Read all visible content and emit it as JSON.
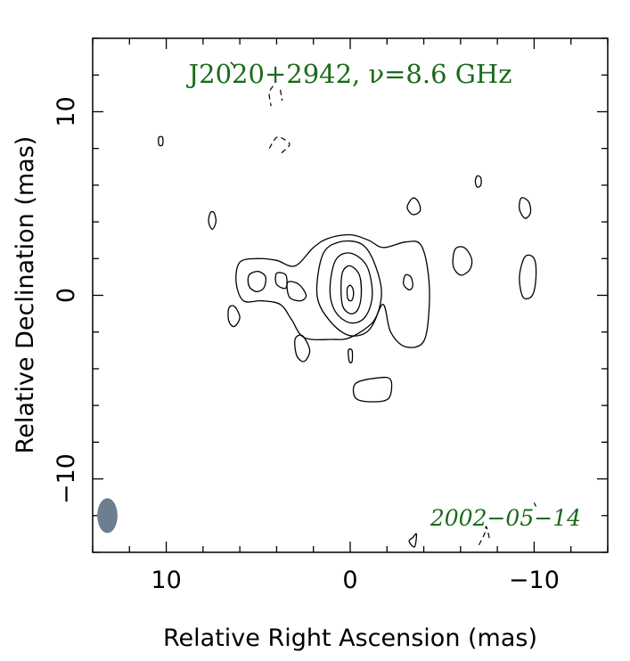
{
  "chart_data": {
    "type": "contour",
    "title": "J2020+2942, ν=8.6 GHz",
    "date": "2002−05−14",
    "xlabel": "Relative Right Ascension (mas)",
    "ylabel": "Relative Declination (mas)",
    "xlim": [
      14,
      -14
    ],
    "ylim": [
      -14,
      14
    ],
    "x_ticks": [
      10,
      0,
      -10
    ],
    "x_tick_labels": [
      "10",
      "0",
      "−10"
    ],
    "y_ticks": [
      10,
      0,
      -10
    ],
    "y_tick_labels": [
      "10",
      "0",
      "−10"
    ],
    "beam": {
      "x": 13.2,
      "y": -12.0,
      "major_mas": 1.9,
      "minor_mas": 1.1,
      "position_angle_deg": 0,
      "color": "#6e7e90"
    },
    "contours": {
      "positive": [
        {
          "level": 1,
          "points": [
            [
              6.0,
              1.8
            ],
            [
              5.0,
              2.0
            ],
            [
              4.0,
              1.9
            ],
            [
              3.0,
              1.6
            ],
            [
              2.0,
              2.6
            ],
            [
              1.2,
              3.1
            ],
            [
              0.0,
              3.3
            ],
            [
              -1.0,
              3.0
            ],
            [
              -1.8,
              2.6
            ],
            [
              -3.0,
              2.9
            ],
            [
              -3.8,
              2.8
            ],
            [
              -4.2,
              1.5
            ],
            [
              -4.3,
              -0.5
            ],
            [
              -4.0,
              -2.5
            ],
            [
              -3.0,
              -2.8
            ],
            [
              -2.2,
              -2.0
            ],
            [
              -1.8,
              -0.5
            ],
            [
              -1.2,
              -1.5
            ],
            [
              0.0,
              -2.3
            ],
            [
              1.0,
              -2.4
            ],
            [
              2.5,
              -2.3
            ],
            [
              3.2,
              -1.3
            ],
            [
              3.8,
              -0.5
            ],
            [
              4.8,
              -0.3
            ],
            [
              5.8,
              -0.3
            ],
            [
              6.2,
              0.7
            ]
          ]
        },
        {
          "level": 2,
          "points": [
            [
              1.5,
              2.2
            ],
            [
              0.6,
              2.9
            ],
            [
              -0.6,
              2.8
            ],
            [
              -1.3,
              1.8
            ],
            [
              -1.7,
              0.0
            ],
            [
              -1.1,
              -1.8
            ],
            [
              0.0,
              -2.2
            ],
            [
              1.1,
              -1.4
            ],
            [
              1.8,
              0.0
            ]
          ]
        },
        {
          "level": 3,
          "points": [
            [
              0.8,
              1.9
            ],
            [
              0.0,
              2.3
            ],
            [
              -0.9,
              1.6
            ],
            [
              -1.2,
              0.0
            ],
            [
              -0.8,
              -1.2
            ],
            [
              0.0,
              -1.5
            ],
            [
              0.8,
              -0.9
            ],
            [
              1.1,
              0.3
            ]
          ]
        },
        {
          "level": 4,
          "points": [
            [
              0.4,
              1.3
            ],
            [
              0.0,
              1.6
            ],
            [
              -0.5,
              1.1
            ],
            [
              -0.6,
              0.0
            ],
            [
              -0.4,
              -0.8
            ],
            [
              0.0,
              -1.0
            ],
            [
              0.4,
              -0.6
            ],
            [
              0.5,
              0.4
            ]
          ]
        },
        {
          "level": 5,
          "points": [
            [
              0.15,
              0.4
            ],
            [
              0.0,
              0.55
            ],
            [
              -0.15,
              0.35
            ],
            [
              -0.18,
              0.0
            ],
            [
              -0.1,
              -0.25
            ],
            [
              0.0,
              -0.3
            ],
            [
              0.12,
              -0.2
            ],
            [
              0.17,
              0.1
            ]
          ]
        },
        {
          "level": 1,
          "points": [
            [
              5.5,
              1.1
            ],
            [
              5.0,
              1.3
            ],
            [
              4.6,
              1.0
            ],
            [
              4.7,
              0.4
            ],
            [
              5.1,
              0.2
            ],
            [
              5.5,
              0.5
            ]
          ]
        },
        {
          "level": 1,
          "points": [
            [
              4.0,
              1.2
            ],
            [
              3.5,
              1.1
            ],
            [
              3.5,
              0.4
            ],
            [
              4.0,
              0.6
            ]
          ]
        },
        {
          "level": 1,
          "points": [
            [
              3.4,
              0.7
            ],
            [
              2.8,
              0.6
            ],
            [
              2.4,
              0.0
            ],
            [
              2.7,
              -0.3
            ],
            [
              3.3,
              -0.1
            ]
          ]
        },
        {
          "level": 1,
          "points": [
            [
              -3.0,
              1.1
            ],
            [
              -3.3,
              1.0
            ],
            [
              -3.4,
              0.5
            ],
            [
              -3.2,
              0.3
            ],
            [
              -2.9,
              0.6
            ]
          ]
        },
        {
          "level": 1,
          "points": [
            [
              -5.7,
              2.5
            ],
            [
              -6.2,
              2.6
            ],
            [
              -6.6,
              2.0
            ],
            [
              -6.5,
              1.4
            ],
            [
              -6.0,
              1.1
            ],
            [
              -5.6,
              1.6
            ]
          ]
        },
        {
          "level": 1,
          "points": [
            [
              -9.5,
              2.1
            ],
            [
              -10.0,
              2.0
            ],
            [
              -10.1,
              1.0
            ],
            [
              -9.9,
              0.0
            ],
            [
              -9.4,
              -0.1
            ],
            [
              -9.2,
              1.0
            ]
          ]
        },
        {
          "level": 1,
          "points": [
            [
              -3.4,
              5.3
            ],
            [
              -3.7,
              5.1
            ],
            [
              -3.8,
              4.6
            ],
            [
              -3.4,
              4.4
            ],
            [
              -3.1,
              4.8
            ]
          ]
        },
        {
          "level": 1,
          "points": [
            [
              -9.3,
              5.3
            ],
            [
              -9.7,
              5.1
            ],
            [
              -9.8,
              4.5
            ],
            [
              -9.5,
              4.2
            ],
            [
              -9.2,
              4.7
            ]
          ]
        },
        {
          "level": 1,
          "points": [
            [
              -6.9,
              6.5
            ],
            [
              -7.1,
              6.4
            ],
            [
              -7.1,
              6.0
            ],
            [
              -6.9,
              5.9
            ],
            [
              -6.8,
              6.2
            ]
          ]
        },
        {
          "level": 1,
          "points": [
            [
              7.6,
              4.5
            ],
            [
              7.4,
              4.5
            ],
            [
              7.3,
              4.0
            ],
            [
              7.5,
              3.6
            ],
            [
              7.7,
              4.0
            ]
          ]
        },
        {
          "level": 1,
          "points": [
            [
              10.4,
              8.6
            ],
            [
              10.2,
              8.6
            ],
            [
              10.2,
              8.2
            ],
            [
              10.4,
              8.2
            ]
          ]
        },
        {
          "level": 1,
          "points": [
            [
              6.3,
              -0.6
            ],
            [
              6.6,
              -0.7
            ],
            [
              6.6,
              -1.4
            ],
            [
              6.3,
              -1.7
            ],
            [
              6.0,
              -1.2
            ]
          ]
        },
        {
          "level": 1,
          "points": [
            [
              2.6,
              -2.2
            ],
            [
              3.0,
              -2.4
            ],
            [
              2.9,
              -3.3
            ],
            [
              2.5,
              -3.6
            ],
            [
              2.2,
              -3.0
            ]
          ]
        },
        {
          "level": 1,
          "points": [
            [
              0.1,
              -3.0
            ],
            [
              0.05,
              -3.6
            ],
            [
              -0.1,
              -3.6
            ],
            [
              -0.1,
              -3.0
            ]
          ]
        },
        {
          "level": 1,
          "points": [
            [
              -0.3,
              -4.8
            ],
            [
              -1.5,
              -4.5
            ],
            [
              -2.2,
              -4.6
            ],
            [
              -2.1,
              -5.6
            ],
            [
              -1.2,
              -5.8
            ],
            [
              -0.3,
              -5.6
            ]
          ]
        },
        {
          "level": 1,
          "points": [
            [
              -3.2,
              -13.4
            ],
            [
              -3.4,
              -13.2
            ],
            [
              -3.6,
              -13.0
            ],
            [
              -3.5,
              -13.7
            ]
          ]
        }
      ],
      "negative": [
        {
          "points": [
            [
              4.2,
              11.4
            ],
            [
              4.4,
              11.0
            ],
            [
              4.3,
              10.3
            ]
          ]
        },
        {
          "points": [
            [
              3.8,
              11.2
            ],
            [
              3.7,
              10.6
            ]
          ]
        },
        {
          "points": [
            [
              4.4,
              8.0
            ],
            [
              4.0,
              8.6
            ],
            [
              3.6,
              8.5
            ],
            [
              3.3,
              8.2
            ],
            [
              3.8,
              7.7
            ]
          ]
        },
        {
          "points": [
            [
              6.5,
              12.7
            ],
            [
              6.3,
              12.5
            ]
          ]
        },
        {
          "points": [
            [
              -7.0,
              -13.6
            ],
            [
              -7.3,
              -13.0
            ],
            [
              -7.4,
              -12.6
            ],
            [
              -7.6,
              -13.4
            ]
          ]
        },
        {
          "points": [
            [
              -10.0,
              -11.3
            ],
            [
              -10.1,
              -11.5
            ]
          ]
        }
      ]
    }
  }
}
